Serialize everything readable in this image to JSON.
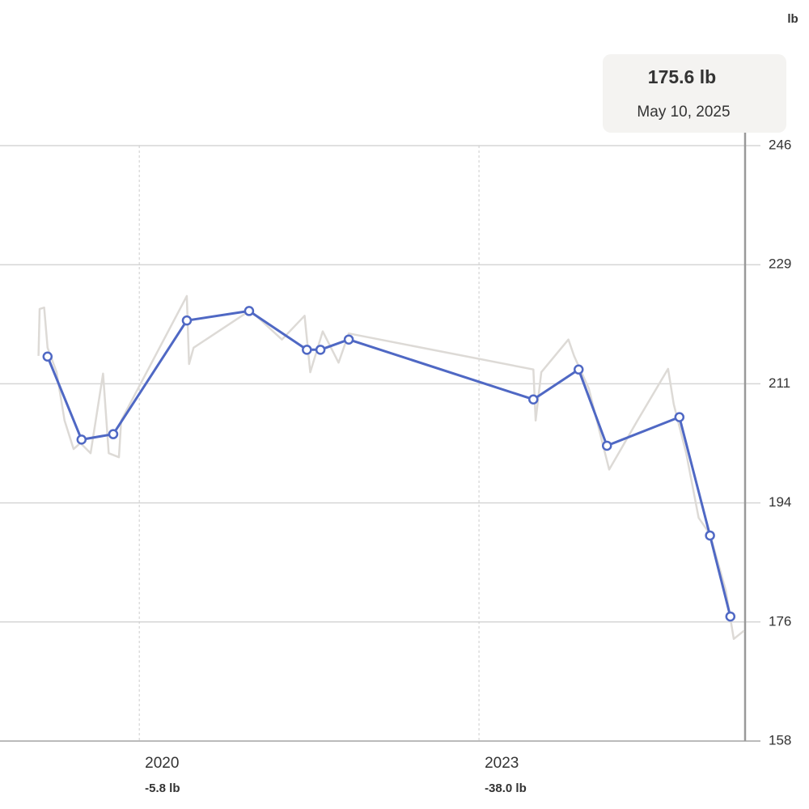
{
  "chart_data": {
    "type": "line",
    "unit": "lb",
    "tooltip": {
      "value": "175.6 lb",
      "date": "May 10, 2025"
    },
    "xlim": [
      2018.77,
      2025.35
    ],
    "xticks": [
      2020,
      2023
    ],
    "x_tick_changes": [
      "-5.8 lb",
      "-38.0 lb"
    ],
    "ylim": [
      158.5,
      246
    ],
    "yticks": [
      {
        "value": 158.5,
        "label": "158"
      },
      176,
      {
        "value": 193.5,
        "label": "194"
      },
      211,
      {
        "value": 228.5,
        "label": "229"
      },
      246
    ],
    "grid": true,
    "series": [
      {
        "color": "#dddad6",
        "x": [
          2019.11,
          2019.12,
          2019.16,
          2019.19,
          2019.27,
          2019.34,
          2019.42,
          2019.48,
          2019.57,
          2019.68,
          2019.73,
          2019.82,
          2019.84,
          2020.42,
          2020.44,
          2020.48,
          2020.98,
          2021.26,
          2021.46,
          2021.51,
          2021.62,
          2021.76,
          2021.85,
          2023.48,
          2023.5,
          2023.55,
          2023.79,
          2023.84,
          2023.97,
          2024.15,
          2024.4,
          2024.67,
          2024.72,
          2024.83,
          2024.94,
          2025.04,
          2025.18,
          2025.25,
          2025.34
        ],
        "values": [
          215.1,
          222.0,
          222.2,
          216.3,
          212.7,
          205.6,
          201.4,
          202.3,
          200.8,
          212.5,
          200.8,
          200.2,
          205.6,
          223.9,
          213.9,
          216.3,
          221.8,
          217.5,
          221.0,
          212.7,
          218.7,
          214.1,
          218.4,
          213.1,
          205.6,
          212.7,
          217.5,
          215.1,
          210.3,
          198.4,
          205.6,
          213.2,
          208.0,
          200.8,
          191.3,
          188.9,
          180.6,
          173.5,
          174.7
        ]
      },
      {
        "color": "#4f68c4",
        "x": [
          2019.19,
          2019.49,
          2019.77,
          2020.42,
          2020.97,
          2021.48,
          2021.6,
          2021.85,
          2023.48,
          2023.88,
          2024.13,
          2024.77,
          2025.04,
          2025.22
        ],
        "values": [
          215.0,
          202.8,
          203.6,
          220.3,
          221.7,
          216.0,
          216.0,
          217.5,
          208.7,
          213.1,
          201.9,
          206.1,
          188.7,
          176.8
        ]
      }
    ]
  }
}
